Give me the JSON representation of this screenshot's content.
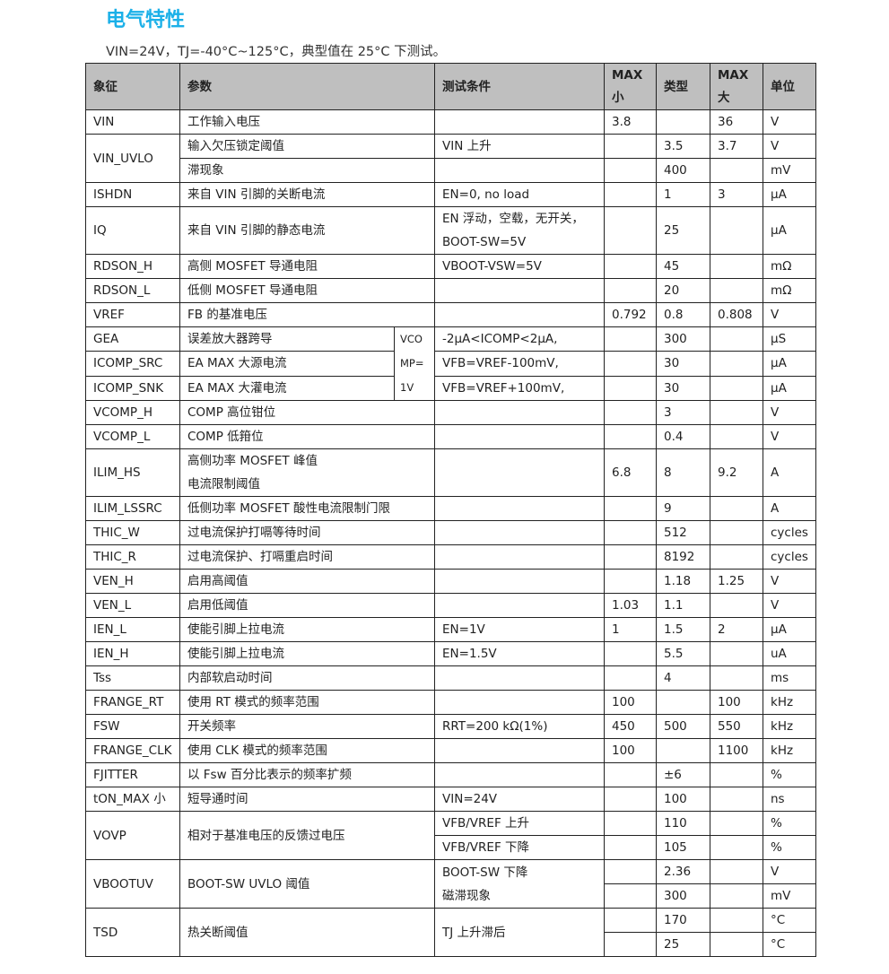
{
  "title": "电气特性",
  "subtitle": "VIN=24V，TJ=-40°C~125°C，典型值在 25°C 下测试。",
  "colors": {
    "title": "#1bb0e8",
    "header_bg": "#bfbfbf"
  },
  "headers": [
    "象征",
    "参数",
    "测试条件",
    "MAX\n小",
    "类型",
    "MAX\n大",
    "单位"
  ],
  "rows": [
    {
      "symbol": "VIN",
      "param": "工作输入电压",
      "cond": "",
      "min": "3.8",
      "typ": "",
      "max": "36",
      "unit": "V"
    },
    {
      "symbol": "VIN_UVLO",
      "param": "输入欠压锁定阈值",
      "cond": "VIN 上升",
      "min": "",
      "typ": "3.5",
      "max": "3.7",
      "unit": "V"
    },
    {
      "symbol": null,
      "param": "滞现象",
      "cond": "",
      "min": "",
      "typ": "400",
      "max": "",
      "unit": "mV"
    },
    {
      "symbol": "ISHDN",
      "param": "来自  VIN  引脚的关断电流",
      "cond": "EN=0, no load",
      "min": "",
      "typ": "1",
      "max": "3",
      "unit": "µA"
    },
    {
      "symbol": "IQ",
      "param": "来自  VIN  引脚的静态电流",
      "cond": "EN 浮动，空载，无开关，\nBOOT-SW=5V",
      "min": "",
      "typ": "25",
      "max": "",
      "unit": "µA"
    },
    {
      "symbol": "RDSON_H",
      "param": "高侧 MOSFET 导通电阻",
      "cond": "VBOOT-VSW=5V",
      "min": "",
      "typ": "45",
      "max": "",
      "unit": "mΩ"
    },
    {
      "symbol": "RDSON_L",
      "param": "低侧 MOSFET 导通电阻",
      "cond": "",
      "min": "",
      "typ": "20",
      "max": "",
      "unit": "mΩ"
    },
    {
      "symbol": "VREF",
      "param": "FB 的基准电压",
      "cond": "",
      "min": "0.792",
      "typ": "0.8",
      "max": "0.808",
      "unit": "V"
    },
    {
      "symbol": "GEA",
      "param": "误差放大器跨导",
      "side": "VCO\nMP=\n1V",
      "cond": "-2µA<ICOMP<2µA,",
      "min": "",
      "typ": "300",
      "max": "",
      "unit": "µS"
    },
    {
      "symbol": "ICOMP_SRC",
      "param": "EA    MAX 大源电流",
      "side": null,
      "cond": "VFB=VREF-100mV,",
      "min": "",
      "typ": "30",
      "max": "",
      "unit": "µA"
    },
    {
      "symbol": "ICOMP_SNK",
      "param": "EA    MAX 大灌电流",
      "side": null,
      "cond": "VFB=VREF+100mV,",
      "min": "",
      "typ": "30",
      "max": "",
      "unit": "µA"
    },
    {
      "symbol": "VCOMP_H",
      "param": "COMP 高位钳位",
      "cond": "",
      "min": "",
      "typ": "3",
      "max": "",
      "unit": "V"
    },
    {
      "symbol": "VCOMP_L",
      "param": "COMP 低箝位",
      "cond": "",
      "min": "",
      "typ": "0.4",
      "max": "",
      "unit": "V"
    },
    {
      "symbol": "ILIM_HS",
      "param": "高侧功率 MOSFET 峰值\n电流限制阈值",
      "cond": "",
      "min": "6.8",
      "typ": "8",
      "max": "9.2",
      "unit": "A"
    },
    {
      "symbol": "ILIM_LSSRC",
      "param": "低侧功率 MOSFET 酸性电流限制门限",
      "cond": "",
      "min": "",
      "typ": "9",
      "max": "",
      "unit": "A"
    },
    {
      "symbol": "THIC_W",
      "param": "过电流保护打嗝等待时间",
      "cond": "",
      "min": "",
      "typ": "512",
      "max": "",
      "unit": "cycles"
    },
    {
      "symbol": "THIC_R",
      "param": "过电流保护、打嗝重启时间",
      "cond": "",
      "min": "",
      "typ": "8192",
      "max": "",
      "unit": "cycles"
    },
    {
      "symbol": "VEN_H",
      "param": "启用高阈值",
      "cond": "",
      "min": "",
      "typ": "1.18",
      "max": "1.25",
      "unit": "V"
    },
    {
      "symbol": "VEN_L",
      "param": "启用低阈值",
      "cond": "",
      "min": "1.03",
      "typ": "1.1",
      "max": "",
      "unit": "V"
    },
    {
      "symbol": "IEN_L",
      "param": "使能引脚上拉电流",
      "cond": "EN=1V",
      "min": "1",
      "typ": "1.5",
      "max": "2",
      "unit": "µA"
    },
    {
      "symbol": "IEN_H",
      "param": "使能引脚上拉电流",
      "cond": "EN=1.5V",
      "min": "",
      "typ": "5.5",
      "max": "",
      "unit": "uA"
    },
    {
      "symbol": "Tss",
      "param": "内部软启动时间",
      "cond": "",
      "min": "",
      "typ": "4",
      "max": "",
      "unit": "ms"
    },
    {
      "symbol": "FRANGE_RT",
      "param": "使用  RT  模式的频率范围",
      "cond": "",
      "min": "100",
      "typ": "",
      "max": "100",
      "unit": "kHz"
    },
    {
      "symbol": "FSW",
      "param": "开关频率",
      "cond": "RRT=200 kΩ(1%)",
      "min": "450",
      "typ": "500",
      "max": "550",
      "unit": "kHz"
    },
    {
      "symbol": "FRANGE_CLK",
      "param": "使用  CLK  模式的频率范围",
      "cond": "",
      "min": "100",
      "typ": "",
      "max": "1100",
      "unit": "kHz"
    },
    {
      "symbol": "FJITTER",
      "param": "以  Fsw  百分比表示的频率扩频",
      "cond": "",
      "min": "",
      "typ": "±6",
      "max": "",
      "unit": "%"
    },
    {
      "symbol": "tON_MAX 小",
      "param": "短导通时间",
      "cond": "VIN=24V",
      "min": "",
      "typ": "100",
      "max": "",
      "unit": "ns"
    },
    {
      "symbol": "VOVP",
      "param": "相对于基准电压的反馈过电压",
      "cond": "VFB/VREF 上升",
      "min": "",
      "typ": "110",
      "max": "",
      "unit": "%"
    },
    {
      "symbol": null,
      "param": null,
      "cond": "VFB/VREF 下降",
      "min": "",
      "typ": "105",
      "max": "",
      "unit": "%"
    },
    {
      "symbol": "VBOOTUV",
      "param": "BOOT-SW UVLO  阈值",
      "cond": "BOOT-SW  下降\n磁滞现象",
      "min": "",
      "typ": "2.36",
      "max": "",
      "unit": "V"
    },
    {
      "symbol": null,
      "param": null,
      "cond": null,
      "min": "",
      "typ": "300",
      "max": "",
      "unit": "mV"
    },
    {
      "symbol": "TSD",
      "param": "热关断阈值",
      "cond": "TJ  上升滞后",
      "min": "",
      "typ": "170",
      "max": "",
      "unit": "°C"
    },
    {
      "symbol": null,
      "param": null,
      "cond": null,
      "min": "",
      "typ": "25",
      "max": "",
      "unit": "°C"
    }
  ]
}
